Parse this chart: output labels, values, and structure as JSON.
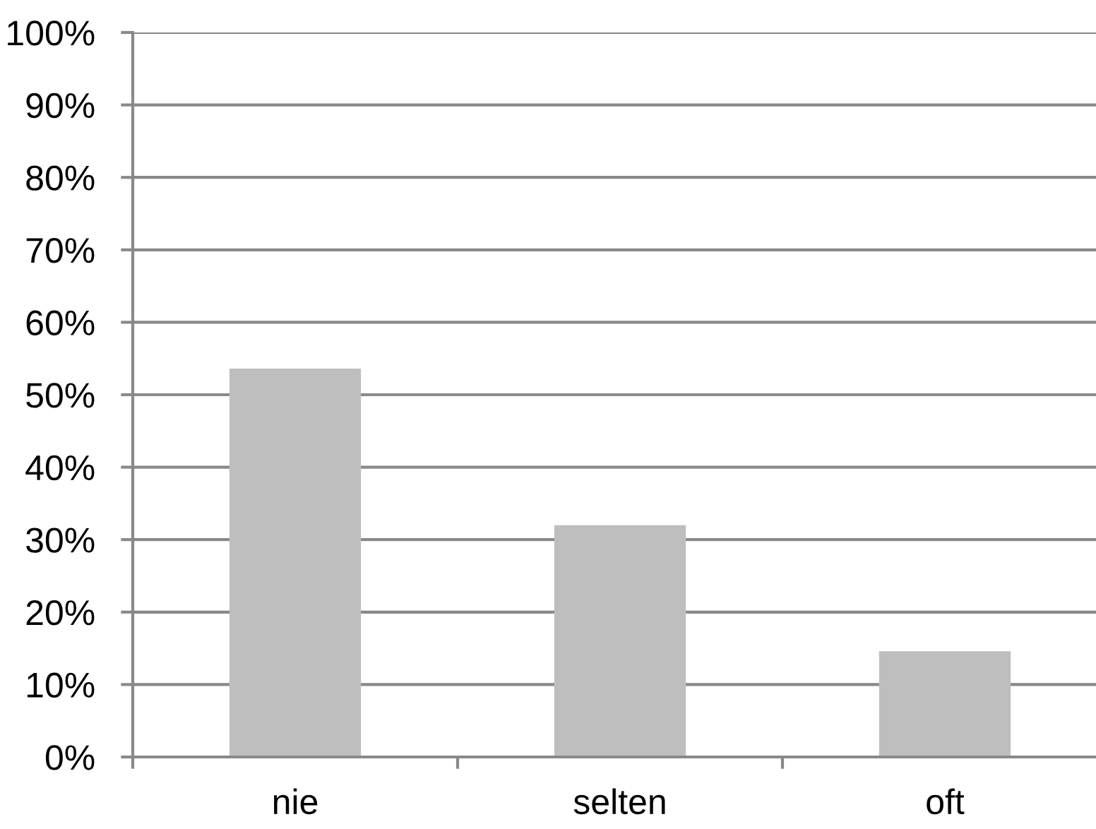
{
  "chart_data": {
    "type": "bar",
    "categories": [
      "nie",
      "selten",
      "oft"
    ],
    "values": [
      53.6,
      32.0,
      14.6
    ],
    "color": "#bebebe",
    "ylim": [
      0,
      100
    ],
    "yticks": [
      {
        "value": 0,
        "label": "0%"
      },
      {
        "value": 10,
        "label": "10%"
      },
      {
        "value": 20,
        "label": "20%"
      },
      {
        "value": 30,
        "label": "30%"
      },
      {
        "value": 40,
        "label": "40%"
      },
      {
        "value": 50,
        "label": "50%"
      },
      {
        "value": 60,
        "label": "60%"
      },
      {
        "value": 70,
        "label": "70%"
      },
      {
        "value": 80,
        "label": "80%"
      },
      {
        "value": 90,
        "label": "90%"
      },
      {
        "value": 100,
        "label": "100%"
      }
    ],
    "grid": "y"
  }
}
